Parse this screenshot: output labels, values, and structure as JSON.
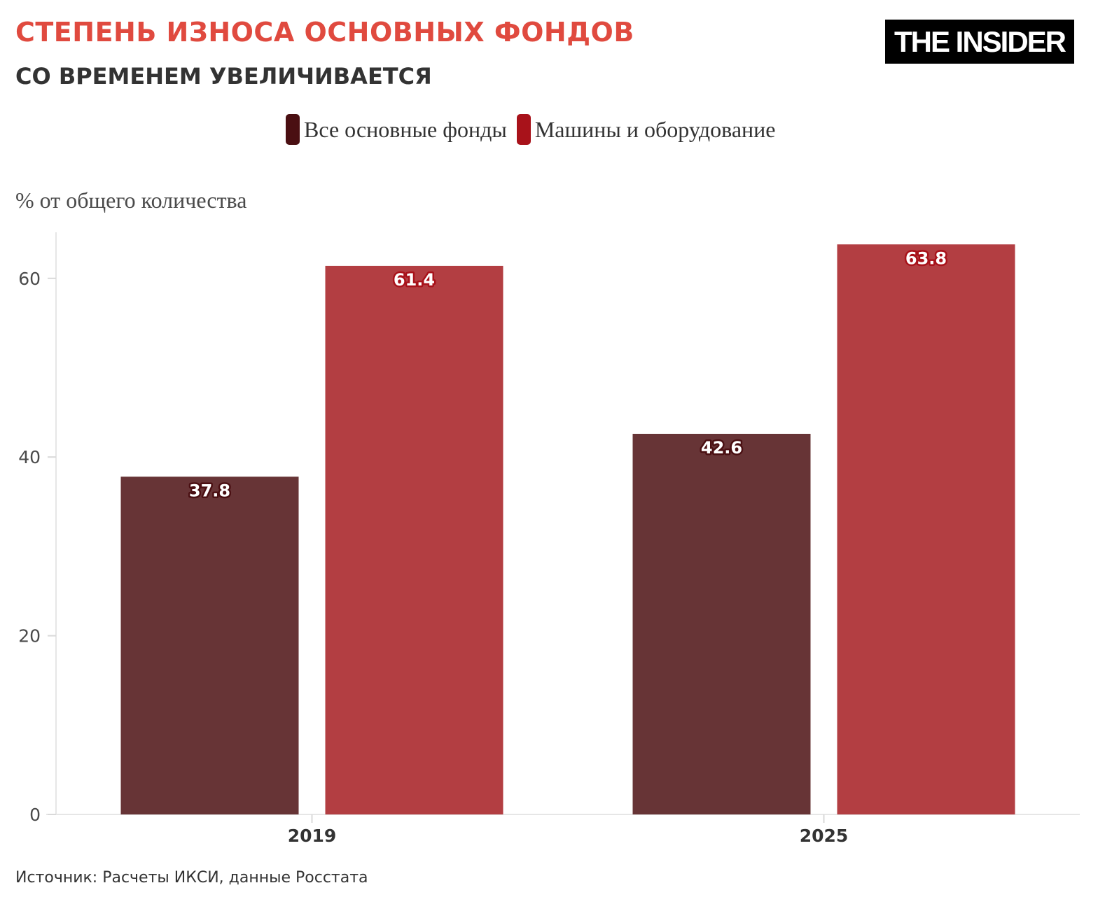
{
  "header": {
    "title": "СТЕПЕНЬ ИЗНОСА ОСНОВНЫХ ФОНДОВ",
    "subtitle": "СО ВРЕМЕНЕМ УВЕЛИЧИВАЕТСЯ",
    "logo": "THE INSIDER"
  },
  "footer": {
    "source": "Источник: Расчеты ИКСИ, данные Росстата"
  },
  "colors": {
    "title": "#e04a3f",
    "legend_series_1": "#4a0f12",
    "legend_series_2": "#a8121a",
    "bar_series_1": "#673436",
    "bar_series_2": "#b33e42"
  },
  "chart_data": {
    "type": "bar",
    "ylabel": "% от общего количества",
    "categories": [
      "2019",
      "2025"
    ],
    "series": [
      {
        "name": "Все основные фонды",
        "values": [
          37.8,
          42.6
        ]
      },
      {
        "name": "Машины и оборудование",
        "values": [
          61.4,
          63.8
        ]
      }
    ],
    "yticks": [
      0,
      20,
      40,
      60
    ],
    "ylim": [
      0,
      65
    ],
    "grid": false,
    "legend_position": "top"
  }
}
